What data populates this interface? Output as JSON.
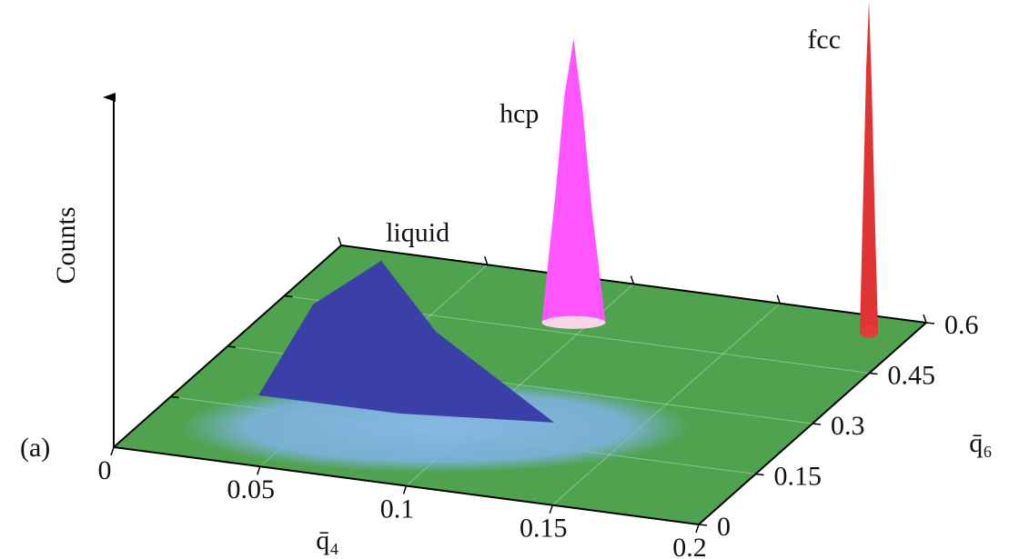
{
  "chart_data": {
    "type": "surface3d",
    "label": "(a)",
    "xlabel": "q̄₄",
    "ylabel": "q̄₆",
    "zlabel": "Counts",
    "xlim": [
      0,
      0.2
    ],
    "xticks": [
      0,
      0.05,
      0.1,
      0.15,
      0.2
    ],
    "ylim": [
      0,
      0.6
    ],
    "yticks": [
      0,
      0.15,
      0.3,
      0.45,
      0.6
    ],
    "zlim": [
      0,
      1
    ],
    "plane_color": "#4fa34f",
    "peaks": [
      {
        "name": "liquid",
        "x": 0.05,
        "y": 0.32,
        "z": 0.27,
        "color": "#3b40a8"
      },
      {
        "name": "hcp",
        "x": 0.095,
        "y": 0.48,
        "z": 0.78,
        "color": "#ff55ff"
      },
      {
        "name": "fcc",
        "x": 0.186,
        "y": 0.557,
        "z": 0.91,
        "color": "#e03434"
      }
    ]
  }
}
